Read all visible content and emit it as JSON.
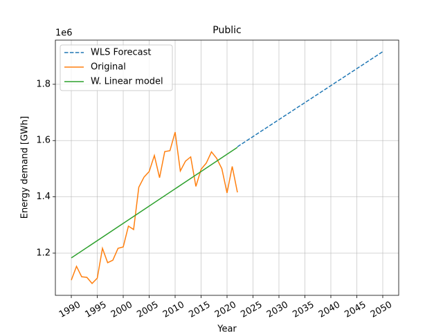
{
  "chart_data": {
    "type": "line",
    "title": "Public",
    "x_label": "Year",
    "y_label": "Energy demand [GWh]",
    "y_offset_label": "1e6",
    "series": [
      {
        "name": "WLS Forecast",
        "color": "#1f77b4",
        "dashed": true,
        "x": [
          2022,
          2050
        ],
        "values": [
          1.578,
          1.916
        ]
      },
      {
        "name": "Original",
        "color": "#ff7f0e",
        "dashed": false,
        "x": [
          1990,
          1991,
          1992,
          1993,
          1994,
          1995,
          1996,
          1997,
          1998,
          1999,
          2000,
          2001,
          2002,
          2003,
          2004,
          2005,
          2006,
          2007,
          2008,
          2009,
          2010,
          2011,
          2012,
          2013,
          2014,
          2015,
          2016,
          2017,
          2018,
          2019,
          2020,
          2021,
          2022
        ],
        "values": [
          1.104,
          1.153,
          1.116,
          1.114,
          1.092,
          1.111,
          1.217,
          1.166,
          1.175,
          1.217,
          1.222,
          1.296,
          1.284,
          1.434,
          1.47,
          1.49,
          1.547,
          1.468,
          1.561,
          1.564,
          1.63,
          1.492,
          1.527,
          1.542,
          1.437,
          1.498,
          1.52,
          1.56,
          1.537,
          1.5,
          1.414,
          1.508,
          1.416
        ]
      },
      {
        "name": "W. Linear model",
        "color": "#2ca02c",
        "dashed": false,
        "x": [
          1990,
          2022
        ],
        "values": [
          1.183,
          1.576
        ]
      }
    ],
    "xlim": [
      1986.93,
      2053.07
    ],
    "xticks": [
      1990,
      1995,
      2000,
      2005,
      2010,
      2015,
      2020,
      2025,
      2030,
      2035,
      2040,
      2045,
      2050
    ],
    "ylim": [
      1.05,
      1.957
    ],
    "yticks": [
      1.2,
      1.4,
      1.6,
      1.8
    ],
    "grid": true,
    "legend": "upper left"
  }
}
